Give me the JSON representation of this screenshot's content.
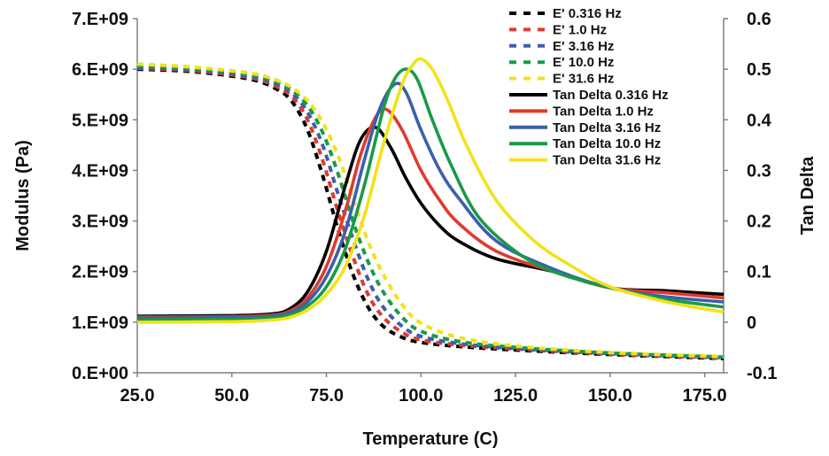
{
  "chart_data": {
    "type": "line",
    "xlabel": "Temperature (C)",
    "ylabel": "Modulus (Pa)",
    "y2label": "Tan Delta",
    "xlim": [
      25,
      180
    ],
    "ylim": [
      0,
      7000000000
    ],
    "y2lim": [
      -0.1,
      0.6
    ],
    "x_ticks": [
      "25.0",
      "50.0",
      "75.0",
      "100.0",
      "125.0",
      "150.0",
      "175.0"
    ],
    "y_ticks": [
      "0.E+00",
      "1.E+09",
      "2.E+09",
      "3.E+09",
      "4.E+09",
      "5.E+09",
      "6.E+09",
      "7.E+09"
    ],
    "y2_ticks": [
      "-0.1",
      "0",
      "0.1",
      "0.2",
      "0.3",
      "0.4",
      "0.5",
      "0.6"
    ],
    "grid": false,
    "legend_position": "top-right",
    "series": [
      {
        "name": "E' 0.316 Hz",
        "axis": "left",
        "style": "dashed",
        "color": "#000000",
        "x": [
          25,
          40,
          55,
          62,
          66,
          70,
          74,
          78,
          82,
          86,
          90,
          95,
          100,
          110,
          125,
          150,
          180
        ],
        "y": [
          6000000000.0,
          5950000000.0,
          5800000000.0,
          5600000000.0,
          5350000000.0,
          4800000000.0,
          3900000000.0,
          2850000000.0,
          1950000000.0,
          1300000000.0,
          920000000.0,
          700000000.0,
          600000000.0,
          520000000.0,
          450000000.0,
          360000000.0,
          280000000.0
        ]
      },
      {
        "name": "E' 1.0 Hz",
        "axis": "left",
        "style": "dashed",
        "color": "#e03a2f",
        "x": [
          25,
          40,
          55,
          62,
          66,
          70,
          74,
          78,
          82,
          86,
          90,
          95,
          100,
          110,
          125,
          150,
          180
        ],
        "y": [
          6020000000.0,
          5970000000.0,
          5830000000.0,
          5650000000.0,
          5450000000.0,
          5000000000.0,
          4200000000.0,
          3200000000.0,
          2300000000.0,
          1550000000.0,
          1100000000.0,
          800000000.0,
          650000000.0,
          550000000.0,
          470000000.0,
          370000000.0,
          290000000.0
        ]
      },
      {
        "name": "E' 3.16 Hz",
        "axis": "left",
        "style": "dashed",
        "color": "#3b5fad",
        "x": [
          25,
          40,
          55,
          62,
          66,
          70,
          74,
          78,
          82,
          86,
          90,
          95,
          100,
          110,
          125,
          150,
          180
        ],
        "y": [
          6040000000.0,
          5990000000.0,
          5860000000.0,
          5700000000.0,
          5520000000.0,
          5150000000.0,
          4500000000.0,
          3550000000.0,
          2650000000.0,
          1850000000.0,
          1300000000.0,
          920000000.0,
          720000000.0,
          580000000.0,
          480000000.0,
          380000000.0,
          300000000.0
        ]
      },
      {
        "name": "E' 10.0 Hz",
        "axis": "left",
        "style": "dashed",
        "color": "#1a9a4a",
        "x": [
          25,
          40,
          55,
          62,
          66,
          70,
          74,
          78,
          82,
          86,
          90,
          95,
          100,
          110,
          125,
          150,
          180
        ],
        "y": [
          6060000000.0,
          6010000000.0,
          5890000000.0,
          5740000000.0,
          5580000000.0,
          5280000000.0,
          4750000000.0,
          3950000000.0,
          3000000000.0,
          2200000000.0,
          1600000000.0,
          1100000000.0,
          820000000.0,
          620000000.0,
          500000000.0,
          390000000.0,
          310000000.0
        ]
      },
      {
        "name": "E' 31.6 Hz",
        "axis": "left",
        "style": "dashed",
        "color": "#f2e21a",
        "x": [
          25,
          40,
          55,
          62,
          66,
          70,
          74,
          78,
          82,
          86,
          90,
          95,
          100,
          110,
          125,
          150,
          180
        ],
        "y": [
          6100000000.0,
          6040000000.0,
          5920000000.0,
          5780000000.0,
          5630000000.0,
          5380000000.0,
          4950000000.0,
          4300000000.0,
          3450000000.0,
          2600000000.0,
          1950000000.0,
          1350000000.0,
          980000000.0,
          700000000.0,
          530000000.0,
          400000000.0,
          320000000.0
        ]
      },
      {
        "name": "Tan Delta 0.316 Hz",
        "axis": "right",
        "style": "solid",
        "color": "#000000",
        "x": [
          25,
          50,
          60,
          65,
          70,
          75,
          80,
          84,
          88,
          92,
          96,
          100,
          105,
          110,
          120,
          135,
          150,
          165,
          180
        ],
        "y": [
          0.012,
          0.013,
          0.016,
          0.025,
          0.06,
          0.14,
          0.27,
          0.36,
          0.385,
          0.345,
          0.285,
          0.235,
          0.19,
          0.16,
          0.125,
          0.1,
          0.068,
          0.062,
          0.055
        ]
      },
      {
        "name": "Tan Delta 1.0 Hz",
        "axis": "right",
        "style": "solid",
        "color": "#e03a2f",
        "x": [
          25,
          50,
          60,
          65,
          70,
          75,
          80,
          84,
          88,
          91,
          95,
          100,
          105,
          110,
          120,
          135,
          150,
          165,
          180
        ],
        "y": [
          0.01,
          0.011,
          0.014,
          0.021,
          0.048,
          0.11,
          0.22,
          0.33,
          0.405,
          0.42,
          0.38,
          0.3,
          0.24,
          0.195,
          0.14,
          0.1,
          0.068,
          0.058,
          0.048
        ]
      },
      {
        "name": "Tan Delta 3.16 Hz",
        "axis": "right",
        "style": "solid",
        "color": "#3b5fad",
        "x": [
          25,
          50,
          60,
          65,
          70,
          75,
          80,
          85,
          89,
          93,
          96,
          100,
          105,
          110,
          120,
          135,
          150,
          165,
          180
        ],
        "y": [
          0.008,
          0.009,
          0.012,
          0.018,
          0.04,
          0.09,
          0.18,
          0.32,
          0.42,
          0.47,
          0.455,
          0.38,
          0.3,
          0.245,
          0.16,
          0.105,
          0.068,
          0.05,
          0.04
        ]
      },
      {
        "name": "Tan Delta 10.0 Hz",
        "axis": "right",
        "style": "solid",
        "color": "#1a9a4a",
        "x": [
          25,
          50,
          60,
          65,
          70,
          75,
          80,
          85,
          90,
          93,
          96,
          99,
          103,
          108,
          115,
          125,
          135,
          150,
          165,
          180
        ],
        "y": [
          0.005,
          0.006,
          0.009,
          0.014,
          0.032,
          0.07,
          0.145,
          0.27,
          0.42,
          0.48,
          0.5,
          0.48,
          0.4,
          0.31,
          0.21,
          0.14,
          0.1,
          0.068,
          0.045,
          0.03
        ]
      },
      {
        "name": "Tan Delta 31.6 Hz",
        "axis": "right",
        "style": "solid",
        "color": "#f2e21a",
        "x": [
          25,
          50,
          60,
          65,
          70,
          75,
          80,
          85,
          90,
          95,
          98,
          100,
          103,
          107,
          112,
          120,
          130,
          140,
          150,
          165,
          180
        ],
        "y": [
          0.0,
          0.001,
          0.004,
          0.009,
          0.024,
          0.055,
          0.11,
          0.21,
          0.35,
          0.47,
          0.51,
          0.52,
          0.5,
          0.44,
          0.35,
          0.24,
          0.16,
          0.11,
          0.07,
          0.04,
          0.02
        ]
      }
    ]
  }
}
